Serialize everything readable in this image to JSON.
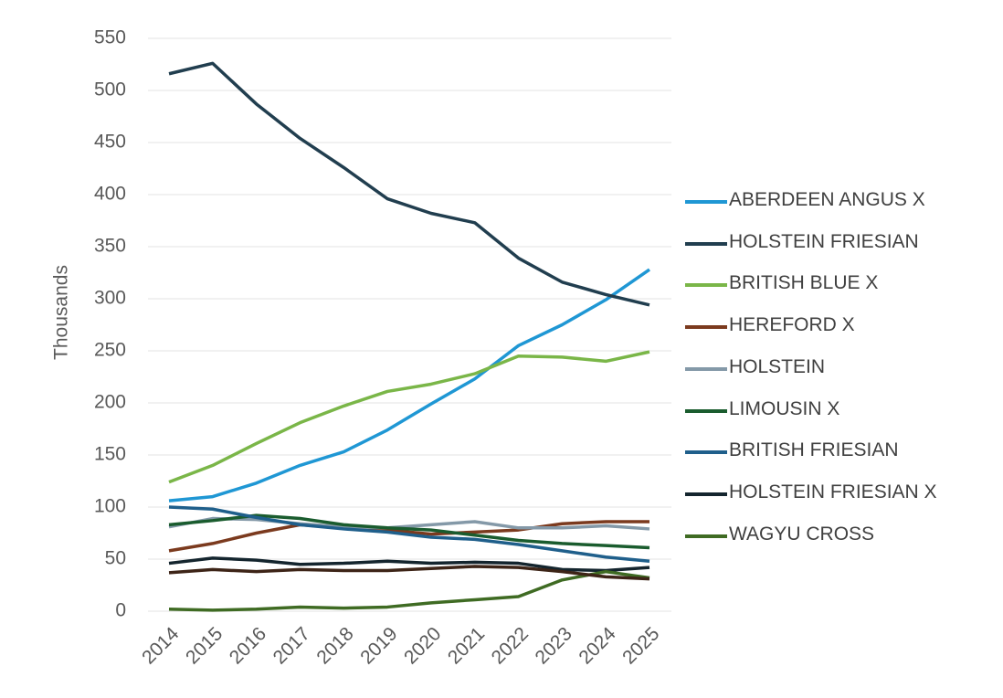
{
  "chart_data": {
    "type": "line",
    "y_label": "Thousands",
    "x": [
      2014,
      2015,
      2016,
      2017,
      2018,
      2019,
      2020,
      2021,
      2022,
      2023,
      2024,
      2025
    ],
    "xlim": [
      2014,
      2025
    ],
    "xticks": [
      2014,
      2015,
      2016,
      2017,
      2018,
      2019,
      2020,
      2021,
      2022,
      2023,
      2024,
      2025
    ],
    "ylim": [
      0,
      550
    ],
    "yticks": [
      0,
      50,
      100,
      150,
      200,
      250,
      300,
      350,
      400,
      450,
      500,
      550
    ],
    "grid": true,
    "series": [
      {
        "name": "ABERDEEN ANGUS X",
        "color": "#1f97d4",
        "values": [
          106,
          110,
          123,
          140,
          153,
          174,
          199,
          223,
          255,
          275,
          299,
          328
        ]
      },
      {
        "name": "HOLSTEIN FRIESIAN",
        "color": "#213e4f",
        "values": [
          516,
          526,
          487,
          454,
          426,
          396,
          382,
          373,
          339,
          316,
          304,
          294
        ]
      },
      {
        "name": "BRITISH BLUE X",
        "color": "#7ab648",
        "values": [
          124,
          140,
          161,
          181,
          197,
          211,
          218,
          228,
          245,
          244,
          240,
          249
        ]
      },
      {
        "name": "HEREFORD X",
        "color": "#7b3a1e",
        "values": [
          58,
          65,
          75,
          83,
          80,
          78,
          74,
          76,
          78,
          84,
          86,
          86
        ]
      },
      {
        "name": "HOLSTEIN",
        "color": "#8499a8",
        "values": [
          81,
          89,
          88,
          84,
          81,
          80,
          83,
          86,
          80,
          80,
          82,
          79
        ]
      },
      {
        "name": "LIMOUSIN X",
        "color": "#1a5c2e",
        "values": [
          83,
          87,
          92,
          89,
          83,
          80,
          78,
          73,
          68,
          65,
          63,
          61
        ]
      },
      {
        "name": "BRITISH FRIESIAN",
        "color": "#1f5f8b",
        "values": [
          100,
          98,
          90,
          83,
          79,
          76,
          71,
          69,
          64,
          58,
          52,
          48
        ]
      },
      {
        "name": "HOLSTEIN FRIESIAN X",
        "color": "#14252e",
        "values": [
          46,
          51,
          49,
          45,
          46,
          48,
          46,
          47,
          46,
          40,
          39,
          42
        ]
      },
      {
        "name": "WAGYU CROSS",
        "color": "#3f6b23",
        "values": [
          2,
          1,
          2,
          4,
          3,
          4,
          8,
          11,
          14,
          30,
          38,
          32
        ]
      },
      {
        "color": "#3d2417",
        "values": [
          37,
          40,
          38,
          40,
          39,
          39,
          41,
          43,
          42,
          38,
          33,
          31
        ]
      }
    ],
    "legend": "right"
  }
}
